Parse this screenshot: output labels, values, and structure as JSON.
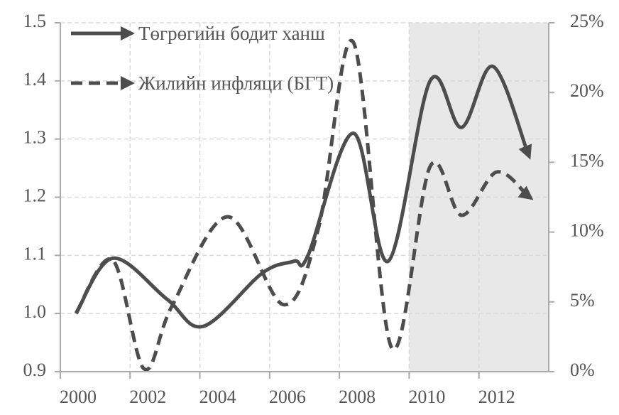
{
  "chart_data": {
    "type": "line",
    "xlim": [
      2000,
      2014
    ],
    "xticks": [
      2000,
      2002,
      2004,
      2006,
      2008,
      2010,
      2012
    ],
    "ylim": [
      0.9,
      1.5
    ],
    "yticks": [
      0.9,
      {
        "value": 1,
        "label": "1.0"
      },
      1.1,
      1.2,
      1.3,
      1.4,
      1.5
    ],
    "y2lim": [
      0,
      25
    ],
    "y2ticks": [
      {
        "value": 0,
        "label": "0%"
      },
      {
        "value": 5,
        "label": "5%"
      },
      {
        "value": 10,
        "label": "10%"
      },
      {
        "value": 15,
        "label": "15%"
      },
      {
        "value": 20,
        "label": "20%"
      },
      {
        "value": 25,
        "label": "25%"
      }
    ],
    "grid": true,
    "legend": "top-left",
    "shaded_xrange": [
      2010,
      2014
    ],
    "series": [
      {
        "name": "Төгрөгийн бодит ханш",
        "color": "#4d4d4d",
        "style": "solid",
        "x": [
          2000.45,
          2001.5,
          2003.05,
          2004.1,
          2005.8,
          2006.7,
          2007.1,
          2008.4,
          2009.4,
          2010.6,
          2011.5,
          2012.4,
          2013.4
        ],
        "values": [
          1.0,
          1.095,
          1.025,
          0.978,
          1.07,
          1.09,
          1.1,
          1.31,
          1.09,
          1.4,
          1.32,
          1.425,
          1.276
        ]
      },
      {
        "name": "Жилийн инфляци (БГТ)",
        "color": "#4d4d4d",
        "style": "dashed",
        "axis": "y2",
        "x": [
          2000.45,
          2001.5,
          2002.4,
          2003.2,
          2004.8,
          2006.4,
          2007.4,
          2008.4,
          2009.5,
          2010.6,
          2011.5,
          2012.5,
          2013.4
        ],
        "values": [
          4.2,
          8.0,
          0.2,
          4.7,
          11.1,
          4.8,
          10.3,
          23.6,
          1.7,
          14.7,
          11.2,
          14.3,
          12.6
        ]
      }
    ]
  }
}
